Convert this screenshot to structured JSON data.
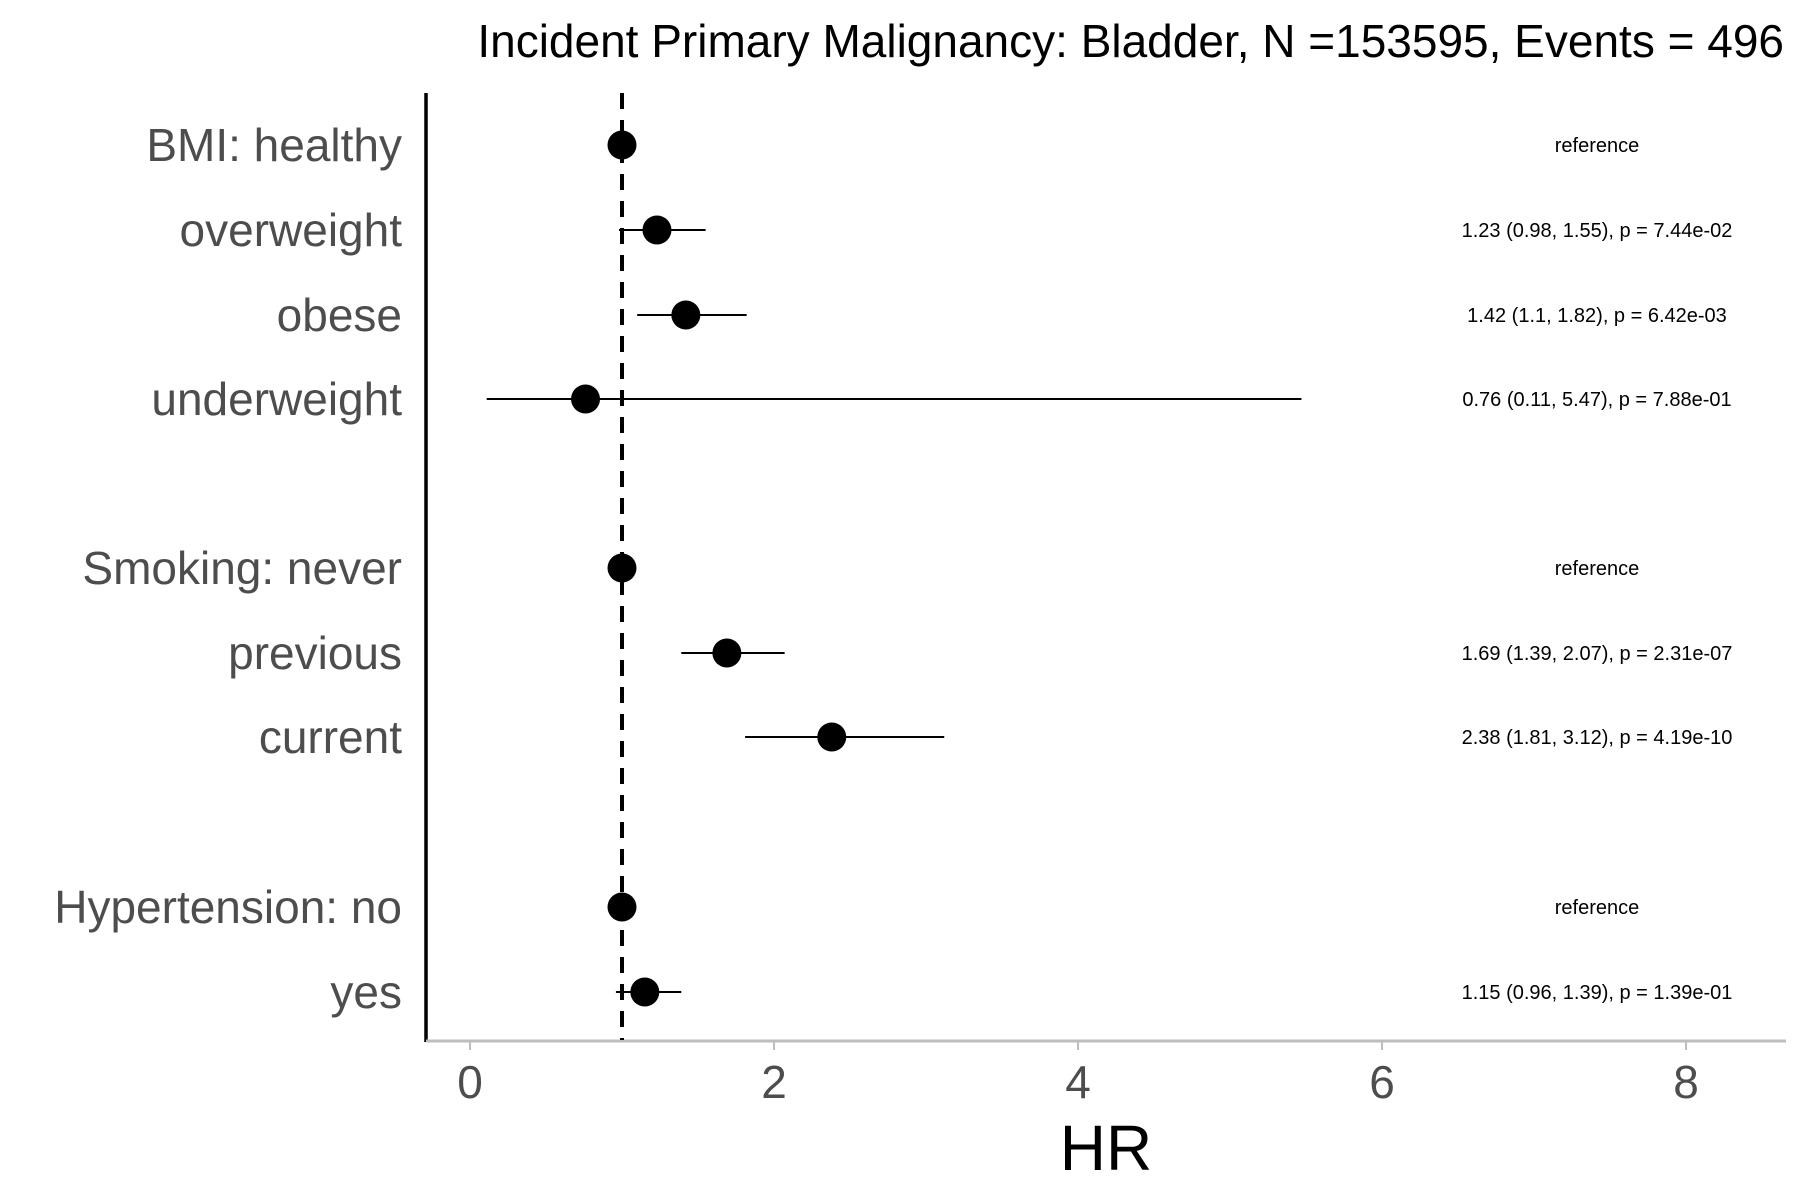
{
  "chart_data": {
    "type": "forest",
    "title": "Incident Primary Malignancy: Bladder, N =153595, Events = 496",
    "xlabel": "HR",
    "ylabel": "",
    "xlim": [
      -0.3,
      8.7
    ],
    "xticks": [
      0,
      2,
      4,
      6,
      8
    ],
    "tick_labels": [
      "0",
      "2",
      "4",
      "6",
      "8"
    ],
    "reference_line": 1,
    "rows": [
      {
        "label": "BMI: healthy",
        "hr": 1.0,
        "lo": null,
        "hi": null,
        "annotation": "reference"
      },
      {
        "label": "overweight",
        "hr": 1.23,
        "lo": 0.98,
        "hi": 1.55,
        "annotation": "1.23 (0.98, 1.55), p = 7.44e-02"
      },
      {
        "label": "obese",
        "hr": 1.42,
        "lo": 1.1,
        "hi": 1.82,
        "annotation": "1.42 (1.1, 1.82), p = 6.42e-03"
      },
      {
        "label": "underweight",
        "hr": 0.76,
        "lo": 0.11,
        "hi": 5.47,
        "annotation": "0.76 (0.11, 5.47), p = 7.88e-01"
      },
      {
        "label": "Smoking: never",
        "hr": 1.0,
        "lo": null,
        "hi": null,
        "annotation": "reference"
      },
      {
        "label": "previous",
        "hr": 1.69,
        "lo": 1.39,
        "hi": 2.07,
        "annotation": "1.69 (1.39, 2.07), p = 2.31e-07"
      },
      {
        "label": "current",
        "hr": 2.38,
        "lo": 1.81,
        "hi": 3.12,
        "annotation": "2.38 (1.81, 3.12), p = 4.19e-10"
      },
      {
        "label": "Hypertension: no",
        "hr": 1.0,
        "lo": null,
        "hi": null,
        "annotation": "reference"
      },
      {
        "label": "yes",
        "hr": 1.15,
        "lo": 0.96,
        "hi": 1.39,
        "annotation": "1.15 (0.96, 1.39), p = 1.39e-01"
      }
    ]
  }
}
